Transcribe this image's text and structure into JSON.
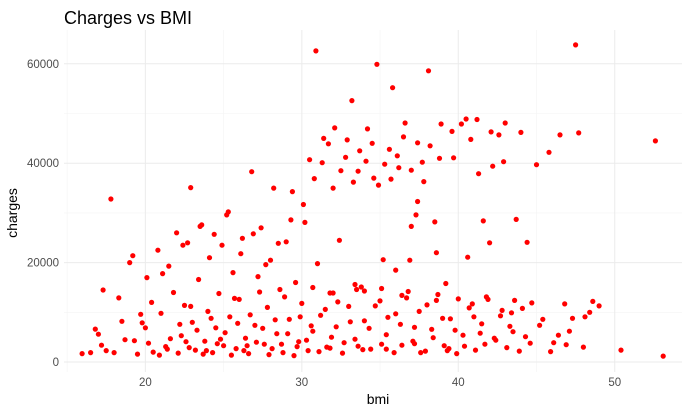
{
  "chart_data": {
    "type": "scatter",
    "title": "Charges vs BMI",
    "xlabel": "bmi",
    "ylabel": "charges",
    "xlim": [
      14.8,
      54.3
    ],
    "ylim": [
      -2000,
      66800
    ],
    "x_ticks": [
      {
        "value": 20,
        "label": "20"
      },
      {
        "value": 30,
        "label": "30"
      },
      {
        "value": 40,
        "label": "40"
      },
      {
        "value": 50,
        "label": "50"
      }
    ],
    "y_ticks": [
      {
        "value": 0,
        "label": "0"
      },
      {
        "value": 20000,
        "label": "20000"
      },
      {
        "value": 40000,
        "label": "40000"
      },
      {
        "value": 60000,
        "label": "60000"
      }
    ],
    "grid": true,
    "point_color": "#ff0000",
    "points": [
      [
        15.96,
        1694
      ],
      [
        16.8,
        6640
      ],
      [
        17.2,
        3400
      ],
      [
        17.3,
        14500
      ],
      [
        17.8,
        32800
      ],
      [
        17.5,
        2300
      ],
      [
        18.0,
        1900
      ],
      [
        18.3,
        12900
      ],
      [
        18.7,
        4500
      ],
      [
        19.0,
        20000
      ],
      [
        19.2,
        21400
      ],
      [
        19.5,
        1600
      ],
      [
        19.8,
        7900
      ],
      [
        20.1,
        17000
      ],
      [
        20.4,
        12000
      ],
      [
        20.5,
        2000
      ],
      [
        20.8,
        22500
      ],
      [
        21.0,
        9800
      ],
      [
        21.3,
        3100
      ],
      [
        21.5,
        19300
      ],
      [
        21.8,
        14000
      ],
      [
        22.0,
        26000
      ],
      [
        22.1,
        1800
      ],
      [
        22.3,
        5300
      ],
      [
        22.5,
        11400
      ],
      [
        22.7,
        24000
      ],
      [
        22.9,
        35100
      ],
      [
        23.0,
        8000
      ],
      [
        23.2,
        2400
      ],
      [
        23.4,
        16600
      ],
      [
        23.6,
        27600
      ],
      [
        23.8,
        4200
      ],
      [
        24.0,
        10200
      ],
      [
        24.1,
        21000
      ],
      [
        24.3,
        1900
      ],
      [
        24.5,
        6900
      ],
      [
        24.7,
        13800
      ],
      [
        24.9,
        23500
      ],
      [
        25.0,
        3300
      ],
      [
        25.2,
        29600
      ],
      [
        25.4,
        9100
      ],
      [
        25.6,
        18000
      ],
      [
        25.8,
        2700
      ],
      [
        26.0,
        12600
      ],
      [
        26.2,
        24900
      ],
      [
        26.4,
        4800
      ],
      [
        26.6,
        1700
      ],
      [
        26.8,
        38300
      ],
      [
        27.0,
        7400
      ],
      [
        27.2,
        17200
      ],
      [
        27.4,
        27000
      ],
      [
        27.6,
        3600
      ],
      [
        27.8,
        11000
      ],
      [
        28.0,
        20500
      ],
      [
        28.2,
        35000
      ],
      [
        28.4,
        5700
      ],
      [
        28.6,
        14600
      ],
      [
        28.8,
        1900
      ],
      [
        29.0,
        24200
      ],
      [
        29.2,
        8600
      ],
      [
        29.4,
        34300
      ],
      [
        29.6,
        16000
      ],
      [
        29.8,
        4100
      ],
      [
        30.0,
        11800
      ],
      [
        30.2,
        28100
      ],
      [
        30.4,
        2300
      ],
      [
        30.5,
        40700
      ],
      [
        30.7,
        6200
      ],
      [
        30.9,
        62600
      ],
      [
        31.0,
        19800
      ],
      [
        31.2,
        9400
      ],
      [
        31.4,
        45000
      ],
      [
        31.6,
        3000
      ],
      [
        31.8,
        13900
      ],
      [
        32.0,
        35000
      ],
      [
        32.2,
        7100
      ],
      [
        32.4,
        24500
      ],
      [
        32.6,
        1800
      ],
      [
        32.8,
        41200
      ],
      [
        33.0,
        11200
      ],
      [
        33.2,
        52600
      ],
      [
        33.4,
        4600
      ],
      [
        33.6,
        38400
      ],
      [
        33.8,
        15100
      ],
      [
        34.0,
        8300
      ],
      [
        34.2,
        46900
      ],
      [
        34.4,
        2600
      ],
      [
        34.6,
        37000
      ],
      [
        34.8,
        59900
      ],
      [
        35.0,
        12300
      ],
      [
        35.2,
        20600
      ],
      [
        35.4,
        5500
      ],
      [
        35.6,
        42800
      ],
      [
        35.8,
        55200
      ],
      [
        36.0,
        9700
      ],
      [
        36.2,
        39100
      ],
      [
        36.4,
        3400
      ],
      [
        36.6,
        48100
      ],
      [
        36.8,
        14200
      ],
      [
        37.0,
        27300
      ],
      [
        37.2,
        7000
      ],
      [
        37.4,
        44100
      ],
      [
        37.6,
        1900
      ],
      [
        37.8,
        36300
      ],
      [
        38.0,
        11500
      ],
      [
        38.1,
        58600
      ],
      [
        38.4,
        4900
      ],
      [
        38.6,
        22000
      ],
      [
        38.8,
        41000
      ],
      [
        39.0,
        8800
      ],
      [
        39.2,
        15800
      ],
      [
        39.4,
        2700
      ],
      [
        39.6,
        46400
      ],
      [
        39.8,
        6400
      ],
      [
        40.0,
        12700
      ],
      [
        40.2,
        47900
      ],
      [
        40.4,
        3200
      ],
      [
        40.6,
        21100
      ],
      [
        40.8,
        44800
      ],
      [
        41.0,
        9100
      ],
      [
        41.2,
        48800
      ],
      [
        41.4,
        5800
      ],
      [
        41.6,
        28400
      ],
      [
        41.8,
        13100
      ],
      [
        42.0,
        24000
      ],
      [
        42.2,
        39400
      ],
      [
        42.4,
        4400
      ],
      [
        42.6,
        45700
      ],
      [
        42.8,
        10400
      ],
      [
        43.0,
        48100
      ],
      [
        43.3,
        7200
      ],
      [
        43.6,
        12400
      ],
      [
        44.0,
        46200
      ],
      [
        44.3,
        5100
      ],
      [
        44.7,
        11900
      ],
      [
        45.0,
        39700
      ],
      [
        45.4,
        8600
      ],
      [
        45.8,
        42200
      ],
      [
        46.1,
        3900
      ],
      [
        46.5,
        45700
      ],
      [
        46.8,
        11700
      ],
      [
        47.1,
        6200
      ],
      [
        47.5,
        63800
      ],
      [
        47.7,
        46100
      ],
      [
        48.1,
        9100
      ],
      [
        48.4,
        10000
      ],
      [
        49.0,
        11300
      ],
      [
        50.4,
        2400
      ],
      [
        52.6,
        44500
      ],
      [
        53.1,
        1200
      ],
      [
        16.5,
        1900
      ],
      [
        17.0,
        5600
      ],
      [
        18.5,
        8200
      ],
      [
        19.3,
        4300
      ],
      [
        20.0,
        6900
      ],
      [
        20.9,
        1400
      ],
      [
        21.6,
        4700
      ],
      [
        22.2,
        7600
      ],
      [
        22.8,
        2900
      ],
      [
        23.3,
        6400
      ],
      [
        23.7,
        1600
      ],
      [
        24.2,
        8800
      ],
      [
        24.6,
        3700
      ],
      [
        25.1,
        5900
      ],
      [
        25.5,
        1400
      ],
      [
        25.9,
        7800
      ],
      [
        26.3,
        2300
      ],
      [
        26.7,
        9500
      ],
      [
        27.1,
        4000
      ],
      [
        27.5,
        6800
      ],
      [
        27.9,
        1500
      ],
      [
        28.3,
        8500
      ],
      [
        28.7,
        3600
      ],
      [
        29.1,
        5700
      ],
      [
        29.5,
        1300
      ],
      [
        29.9,
        9100
      ],
      [
        30.3,
        4400
      ],
      [
        30.6,
        7300
      ],
      [
        31.1,
        2100
      ],
      [
        31.5,
        10600
      ],
      [
        31.9,
        5000
      ],
      [
        32.3,
        12100
      ],
      [
        32.7,
        3900
      ],
      [
        33.1,
        8100
      ],
      [
        33.5,
        14600
      ],
      [
        33.9,
        2500
      ],
      [
        34.3,
        6800
      ],
      [
        34.7,
        11300
      ],
      [
        35.1,
        3600
      ],
      [
        35.5,
        9000
      ],
      [
        35.9,
        1900
      ],
      [
        36.3,
        7600
      ],
      [
        36.7,
        12900
      ],
      [
        37.1,
        4200
      ],
      [
        37.5,
        10200
      ],
      [
        37.9,
        2200
      ],
      [
        38.3,
        6600
      ],
      [
        38.7,
        13600
      ],
      [
        39.1,
        3300
      ],
      [
        39.5,
        8700
      ],
      [
        39.9,
        1700
      ],
      [
        40.3,
        5400
      ],
      [
        40.7,
        10900
      ],
      [
        41.1,
        2400
      ],
      [
        41.5,
        7700
      ],
      [
        41.9,
        12600
      ],
      [
        42.3,
        4800
      ],
      [
        42.7,
        9300
      ],
      [
        43.1,
        2900
      ],
      [
        43.5,
        6100
      ],
      [
        44.1,
        10800
      ],
      [
        44.6,
        3800
      ],
      [
        45.2,
        7400
      ],
      [
        45.9,
        2100
      ],
      [
        46.4,
        5400
      ],
      [
        47.3,
        8800
      ],
      [
        48.0,
        3000
      ],
      [
        48.6,
        12200
      ],
      [
        36.9,
        20500
      ],
      [
        37.3,
        29600
      ],
      [
        21.1,
        17800
      ],
      [
        22.4,
        23500
      ],
      [
        23.5,
        27300
      ],
      [
        24.4,
        25700
      ],
      [
        25.3,
        30200
      ],
      [
        26.1,
        21800
      ],
      [
        26.9,
        25800
      ],
      [
        27.7,
        19600
      ],
      [
        28.5,
        23900
      ],
      [
        29.3,
        28600
      ],
      [
        30.1,
        31700
      ],
      [
        30.8,
        36900
      ],
      [
        31.3,
        40100
      ],
      [
        31.7,
        43900
      ],
      [
        32.1,
        47100
      ],
      [
        32.5,
        38500
      ],
      [
        32.9,
        44700
      ],
      [
        33.3,
        36200
      ],
      [
        33.7,
        42500
      ],
      [
        34.1,
        40400
      ],
      [
        34.5,
        44000
      ],
      [
        34.9,
        35600
      ],
      [
        35.3,
        39800
      ],
      [
        35.7,
        36800
      ],
      [
        36.1,
        41500
      ],
      [
        36.5,
        45300
      ],
      [
        37.0,
        38600
      ],
      [
        37.7,
        40200
      ],
      [
        38.2,
        43500
      ],
      [
        38.9,
        47900
      ],
      [
        39.7,
        41100
      ],
      [
        40.5,
        48900
      ],
      [
        41.3,
        37900
      ],
      [
        42.1,
        46300
      ],
      [
        42.9,
        40300
      ],
      [
        43.7,
        28700
      ],
      [
        44.4,
        24100
      ],
      [
        38.5,
        28200
      ],
      [
        37.4,
        32300
      ],
      [
        36.0,
        18500
      ],
      [
        20.2,
        3800
      ],
      [
        21.4,
        2600
      ],
      [
        22.6,
        4100
      ],
      [
        23.9,
        2300
      ],
      [
        24.8,
        4600
      ],
      [
        26.5,
        3300
      ],
      [
        28.1,
        2700
      ],
      [
        29.7,
        3100
      ],
      [
        31.8,
        2800
      ],
      [
        33.6,
        3200
      ],
      [
        35.4,
        2600
      ],
      [
        37.2,
        3700
      ],
      [
        39.3,
        2300
      ],
      [
        41.7,
        3600
      ],
      [
        43.9,
        2200
      ],
      [
        46.9,
        3500
      ],
      [
        19.7,
        9600
      ],
      [
        22.9,
        11200
      ],
      [
        25.7,
        12800
      ],
      [
        28.9,
        13100
      ],
      [
        32.0,
        13900
      ],
      [
        34.0,
        14300
      ],
      [
        36.4,
        13400
      ],
      [
        38.6,
        12400
      ],
      [
        40.9,
        11700
      ],
      [
        43.4,
        9900
      ],
      [
        27.3,
        14100
      ],
      [
        30.7,
        15000
      ],
      [
        33.4,
        15600
      ],
      [
        35.1,
        14800
      ]
    ]
  }
}
